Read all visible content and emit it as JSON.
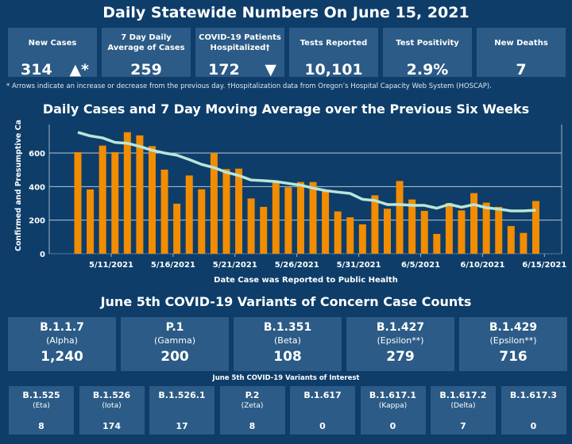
{
  "header": {
    "title": "Daily Statewide Numbers On June 15, 2021"
  },
  "cards": [
    {
      "label": "New Cases",
      "value": "314",
      "arrow": "▲*"
    },
    {
      "label": "7 Day Daily Average of Cases",
      "value": "259"
    },
    {
      "label": "COVID-19 Patients Hospitalized†",
      "value": "172",
      "arrow": "▼"
    },
    {
      "label": "Tests Reported",
      "value": "10,101"
    },
    {
      "label": "Test Positivity",
      "value": "2.9%"
    },
    {
      "label": "New Deaths",
      "value": "7"
    }
  ],
  "footnote": "* Arrows indicate an increase or decrease from the previous day. †Hospitalization data from Oregon’s Hospital Capacity Web System (HOSCAP).",
  "chart_data": {
    "type": "bar",
    "title": "Daily Cases and 7 Day Moving Average over the Previous Six Weeks",
    "xlabel": "Date Case was Reported to Public Health",
    "ylabel": "Confirmed and Presumptive Ca..",
    "ylim": [
      0,
      760
    ],
    "yticks": [
      0,
      200,
      400,
      600
    ],
    "xticks": [
      "5/11/2021",
      "5/16/2021",
      "5/21/2021",
      "5/26/2021",
      "5/31/2021",
      "6/5/2021",
      "6/10/2021",
      "6/15/2021"
    ],
    "grid": true,
    "colors": {
      "bars": "#f28c00",
      "line": "#b9e6d9"
    },
    "dates": [
      "5/8",
      "5/9",
      "5/10",
      "5/11",
      "5/12",
      "5/13",
      "5/14",
      "5/15",
      "5/16",
      "5/17",
      "5/18",
      "5/19",
      "5/20",
      "5/21",
      "5/22",
      "5/23",
      "5/24",
      "5/25",
      "5/26",
      "5/27",
      "5/28",
      "5/29",
      "5/30",
      "5/31",
      "6/1",
      "6/2",
      "6/3",
      "6/4",
      "6/5",
      "6/6",
      "6/7",
      "6/8",
      "6/9",
      "6/10",
      "6/11",
      "6/12",
      "6/13",
      "6/14"
    ],
    "series": [
      {
        "type": "bar",
        "values": [
          605,
          383,
          644,
          605,
          724,
          705,
          641,
          501,
          298,
          466,
          384,
          600,
          504,
          507,
          329,
          279,
          427,
          395,
          427,
          427,
          372,
          252,
          217,
          175,
          348,
          268,
          433,
          323,
          255,
          118,
          302,
          258,
          361,
          304,
          279,
          165,
          124,
          314
        ]
      },
      {
        "type": "line",
        "values": [
          723,
          702,
          690,
          663,
          658,
          639,
          616,
          600,
          587,
          561,
          532,
          513,
          485,
          466,
          439,
          435,
          430,
          419,
          408,
          391,
          376,
          367,
          359,
          324,
          317,
          293,
          293,
          288,
          288,
          271,
          294,
          277,
          293,
          274,
          266,
          255,
          255,
          259
        ]
      }
    ]
  },
  "voc": {
    "title": "June 5th  COVID-19 Variants of Concern Case Counts",
    "items": [
      {
        "name": "B.1.1.7",
        "sub": "(Alpha)",
        "value": "1,240"
      },
      {
        "name": "P.1",
        "sub": "(Gamma)",
        "value": "200"
      },
      {
        "name": "B.1.351",
        "sub": "(Beta)",
        "value": "108"
      },
      {
        "name": "B.1.427",
        "sub": "(Epsilon**)",
        "value": "279"
      },
      {
        "name": "B.1.429",
        "sub": "(Epsilon**)",
        "value": "716"
      }
    ]
  },
  "voi": {
    "title": "June 5th COVID-19 Variants of Interest",
    "items": [
      {
        "name": "B.1.525",
        "sub": "(Eta)",
        "value": "8"
      },
      {
        "name": "B.1.526",
        "sub": "(Iota)",
        "value": "174"
      },
      {
        "name": "B.1.526.1",
        "sub": "",
        "value": "17"
      },
      {
        "name": "P.2",
        "sub": "(Zeta)",
        "value": "8"
      },
      {
        "name": "B.1.617",
        "sub": "",
        "value": "0"
      },
      {
        "name": "B.1.617.1",
        "sub": "(Kappa)",
        "value": "0"
      },
      {
        "name": "B.1.617.2",
        "sub": "(Delta)",
        "value": "7"
      },
      {
        "name": "B.1.617.3",
        "sub": "",
        "value": "0"
      }
    ]
  }
}
